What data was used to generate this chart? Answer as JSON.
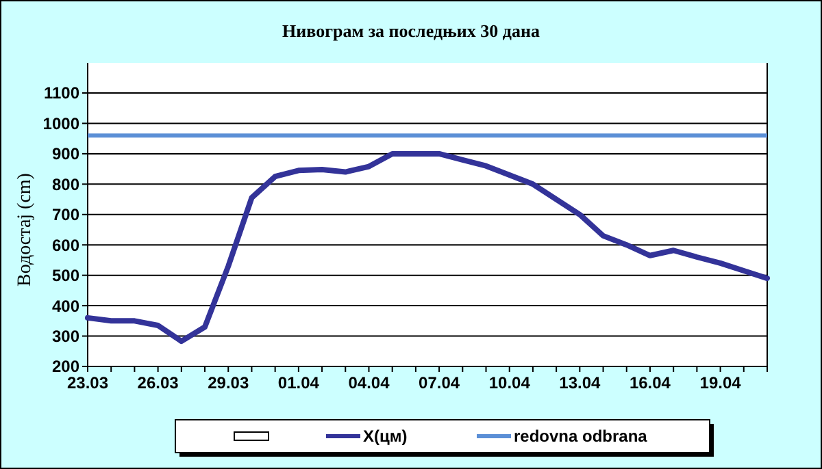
{
  "chart_data": {
    "type": "line",
    "title": "Нивограм за последњих 30 дана",
    "ylabel": "Водостај (cm)",
    "categories": [
      "23.03",
      null,
      null,
      "26.03",
      null,
      null,
      "29.03",
      null,
      null,
      "01.04",
      null,
      null,
      "04.04",
      null,
      null,
      "07.04",
      null,
      null,
      "10.04",
      null,
      null,
      "13.04",
      null,
      null,
      "16.04",
      null,
      null,
      "19.04",
      null,
      null
    ],
    "series": [
      {
        "name": "X(цм)",
        "color": "#333399",
        "values": [
          360,
          350,
          350,
          335,
          283,
          330,
          530,
          755,
          825,
          845,
          848,
          840,
          858,
          900,
          900,
          900,
          880,
          860,
          830,
          800,
          750,
          700,
          630,
          600,
          565,
          582,
          560,
          540,
          515,
          490
        ]
      }
    ],
    "ref_lines": [
      {
        "axis": "y",
        "value": 960,
        "label": "redovna odbrana",
        "color": "#5b8fd6"
      }
    ],
    "ylim": [
      200,
      1100
    ],
    "yticks": [
      200,
      300,
      400,
      500,
      600,
      700,
      800,
      900,
      1000,
      1100
    ],
    "grid": "y",
    "legend": "bottom"
  }
}
